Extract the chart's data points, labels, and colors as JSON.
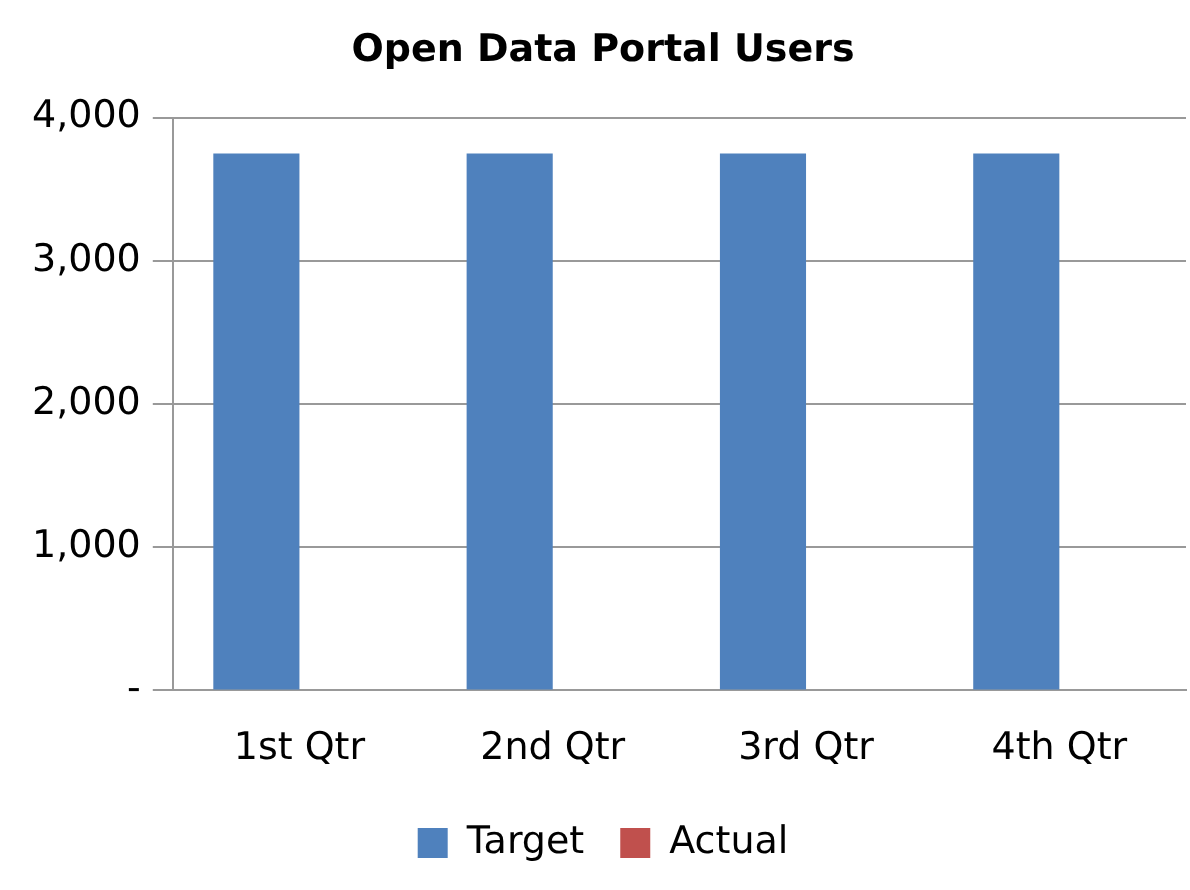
{
  "chart_data": {
    "type": "bar",
    "title": "Open Data Portal Users",
    "categories": [
      "1st Qtr",
      "2nd Qtr",
      "3rd Qtr",
      "4th Qtr"
    ],
    "series": [
      {
        "name": "Target",
        "color": "#4f81bd",
        "values": [
          3750,
          3750,
          3750,
          3750
        ]
      },
      {
        "name": "Actual",
        "color": "#c0504d",
        "values": [
          0,
          0,
          0,
          0
        ]
      }
    ],
    "ylim": [
      0,
      4000
    ],
    "yticks": [
      {
        "value": 0,
        "label": "-"
      },
      {
        "value": 1000,
        "label": "1,000"
      },
      {
        "value": 2000,
        "label": "2,000"
      },
      {
        "value": 3000,
        "label": "3,000"
      },
      {
        "value": 4000,
        "label": "4,000"
      }
    ],
    "grid": "y",
    "legend": "bottom"
  }
}
